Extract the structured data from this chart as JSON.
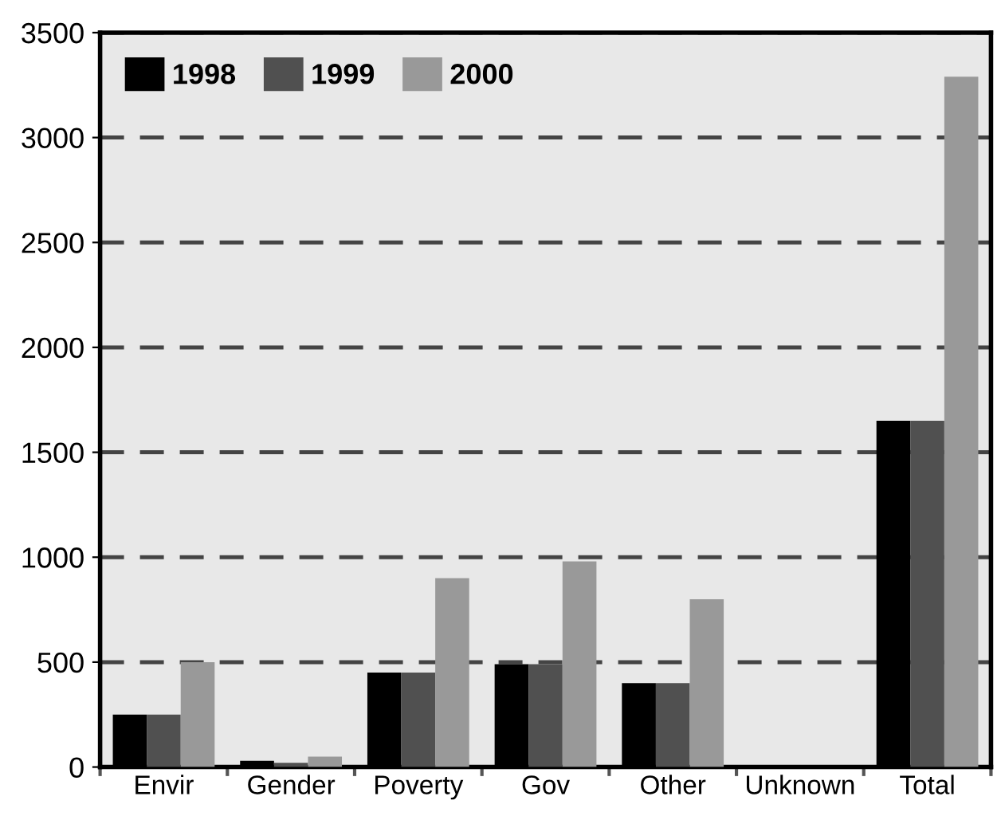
{
  "chart_data": {
    "type": "bar",
    "categories": [
      "Envir",
      "Gender",
      "Poverty",
      "Gov",
      "Other",
      "Unknown",
      "Total"
    ],
    "series": [
      {
        "name": "1998",
        "color": "#000000",
        "values": [
          250,
          30,
          450,
          490,
          400,
          0,
          1650
        ]
      },
      {
        "name": "1999",
        "color": "#505050",
        "values": [
          250,
          20,
          450,
          490,
          400,
          0,
          1650
        ]
      },
      {
        "name": "2000",
        "color": "#999999",
        "values": [
          500,
          50,
          900,
          980,
          800,
          0,
          3290
        ]
      }
    ],
    "ylim": [
      0,
      3500
    ],
    "yticks": [
      0,
      500,
      1000,
      1500,
      2000,
      2500,
      3000,
      3500
    ],
    "grid": "y",
    "legend": "top left"
  }
}
